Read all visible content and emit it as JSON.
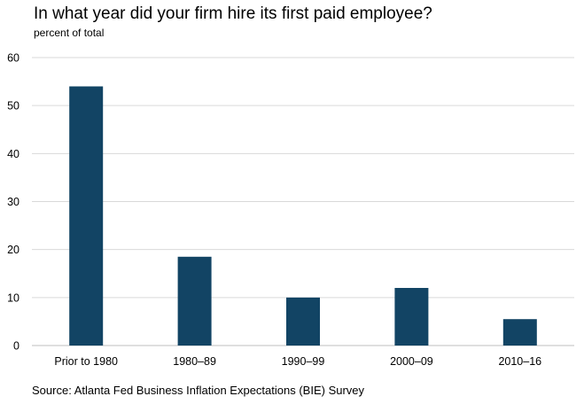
{
  "chart_data": {
    "type": "bar",
    "title": "In what year did your firm hire its first paid employee?",
    "subtitle": "percent of total",
    "categories": [
      "Prior to 1980",
      "1980–89",
      "1990–99",
      "2000–09",
      "2010–16"
    ],
    "values": [
      54,
      18.5,
      10,
      12,
      5.5
    ],
    "ylim": [
      0,
      60
    ],
    "yticks": [
      0,
      10,
      20,
      30,
      40,
      50,
      60
    ],
    "grid": true,
    "bar_color": "#124464",
    "source": "Source: Atlanta Fed Business Inflation Expectations (BIE) Survey"
  }
}
